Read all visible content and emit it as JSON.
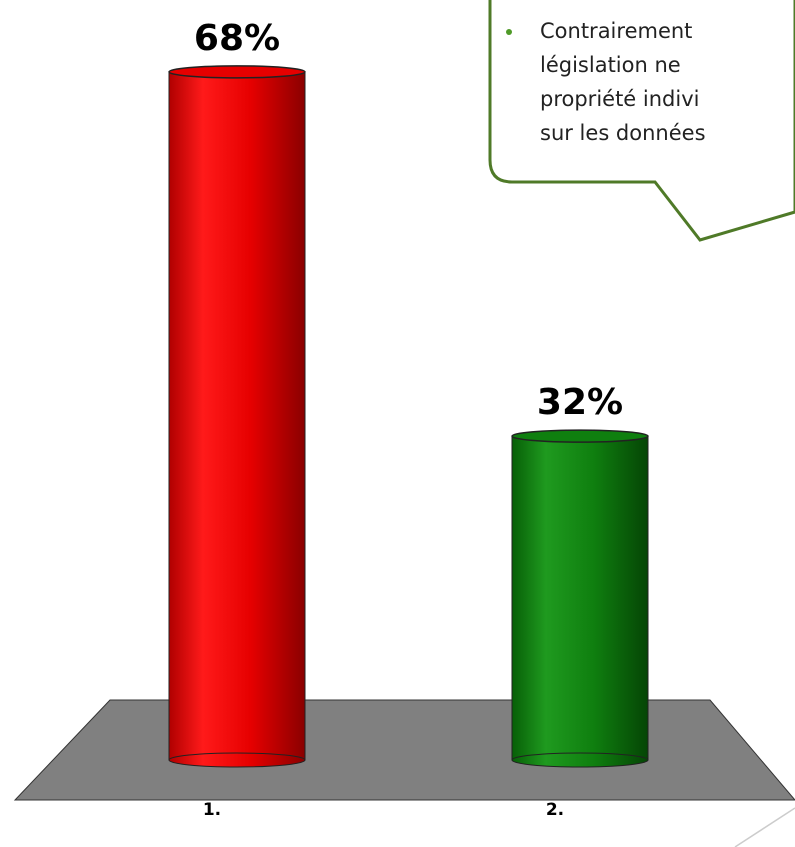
{
  "chart_data": {
    "type": "bar3d",
    "categories": [
      "1.",
      "2."
    ],
    "values": [
      68,
      32
    ],
    "value_labels": [
      "68%",
      "32%"
    ],
    "colors": [
      "#e60000",
      "#0f7f0f"
    ]
  },
  "callout": {
    "lines": [
      "Contrairement",
      "législation  ne",
      "propriété indivi",
      "sur les données"
    ]
  }
}
